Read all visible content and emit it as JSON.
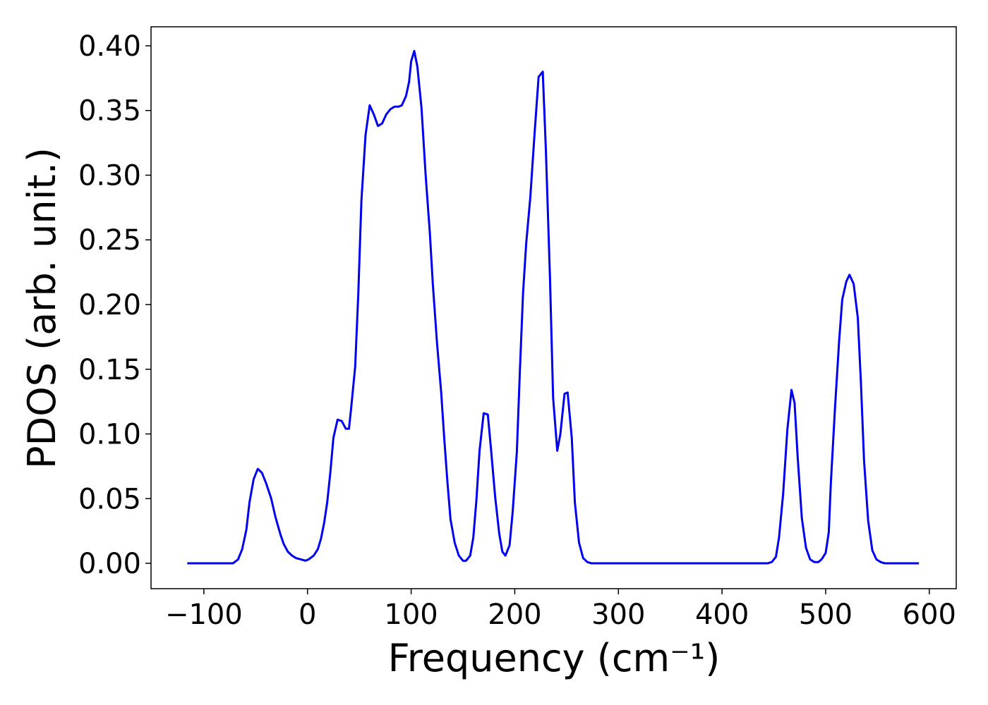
{
  "chart_data": {
    "type": "line",
    "xlabel": "Frequency (cm⁻¹)",
    "ylabel": "PDOS (arb. unit.)",
    "x": [
      -116,
      -72,
      -67,
      -63,
      -59,
      -56,
      -52,
      -48,
      -44,
      -40,
      -35,
      -31,
      -26,
      -23,
      -19,
      -15,
      -11,
      -6,
      -2,
      1,
      6,
      10,
      13,
      16,
      19,
      22,
      25,
      29,
      33,
      37,
      40,
      42,
      46,
      49,
      52,
      56,
      60,
      64,
      68,
      72,
      76,
      80,
      84,
      88,
      91,
      95,
      98,
      100,
      103,
      106,
      110,
      114,
      118,
      121,
      125,
      129,
      132,
      135,
      138,
      142,
      146,
      150,
      153,
      157,
      160,
      163,
      166,
      170,
      174,
      177,
      181,
      185,
      188,
      191,
      195,
      198,
      202,
      205,
      208,
      211,
      215,
      219,
      223,
      227,
      230,
      234,
      237,
      241,
      244,
      248,
      251,
      255,
      258,
      262,
      266,
      270,
      274,
      444,
      448,
      452,
      455,
      459,
      463,
      467,
      470,
      473,
      477,
      481,
      485,
      489,
      493,
      496,
      500,
      503,
      505,
      509,
      513,
      516,
      520,
      523,
      527,
      531,
      534,
      537,
      541,
      545,
      549,
      553,
      557,
      590
    ],
    "series": [
      {
        "name": "PDOS",
        "color": "#0000ee",
        "values": [
          0,
          0,
          0.003,
          0.011,
          0.026,
          0.047,
          0.065,
          0.073,
          0.07,
          0.062,
          0.05,
          0.036,
          0.022,
          0.015,
          0.009,
          0.006,
          0.004,
          0.003,
          0.002,
          0.003,
          0.006,
          0.011,
          0.019,
          0.031,
          0.047,
          0.07,
          0.097,
          0.111,
          0.11,
          0.104,
          0.104,
          0.119,
          0.152,
          0.208,
          0.28,
          0.331,
          0.354,
          0.347,
          0.338,
          0.34,
          0.347,
          0.351,
          0.353,
          0.353,
          0.354,
          0.361,
          0.372,
          0.388,
          0.396,
          0.384,
          0.352,
          0.3,
          0.256,
          0.215,
          0.17,
          0.132,
          0.096,
          0.063,
          0.034,
          0.016,
          0.006,
          0.002,
          0.002,
          0.006,
          0.02,
          0.049,
          0.087,
          0.116,
          0.115,
          0.089,
          0.052,
          0.023,
          0.009,
          0.006,
          0.014,
          0.04,
          0.086,
          0.15,
          0.209,
          0.247,
          0.283,
          0.331,
          0.376,
          0.38,
          0.32,
          0.22,
          0.128,
          0.087,
          0.1,
          0.131,
          0.132,
          0.097,
          0.047,
          0.016,
          0.004,
          0.001,
          0,
          0,
          0.001,
          0.005,
          0.02,
          0.054,
          0.103,
          0.134,
          0.124,
          0.082,
          0.035,
          0.012,
          0.003,
          0.001,
          0.001,
          0.003,
          0.008,
          0.024,
          0.062,
          0.12,
          0.172,
          0.204,
          0.218,
          0.223,
          0.216,
          0.19,
          0.14,
          0.08,
          0.033,
          0.01,
          0.003,
          0.001,
          0,
          0
        ]
      }
    ],
    "xlim": [
      -151,
      626
    ],
    "ylim": [
      -0.0196,
      0.4147
    ],
    "xticks": [
      {
        "value": -100,
        "label": "−100"
      },
      0,
      100,
      200,
      300,
      400,
      500,
      600
    ],
    "yticks": [
      {
        "value": 0,
        "label": "0.00"
      },
      {
        "value": 0.05,
        "label": "0.05"
      },
      {
        "value": 0.1,
        "label": "0.10"
      },
      {
        "value": 0.15,
        "label": "0.15"
      },
      {
        "value": 0.2,
        "label": "0.20"
      },
      {
        "value": 0.25,
        "label": "0.25"
      },
      {
        "value": 0.3,
        "label": "0.30"
      },
      {
        "value": 0.35,
        "label": "0.35"
      },
      {
        "value": 0.4,
        "label": "0.40"
      }
    ],
    "grid": false
  }
}
